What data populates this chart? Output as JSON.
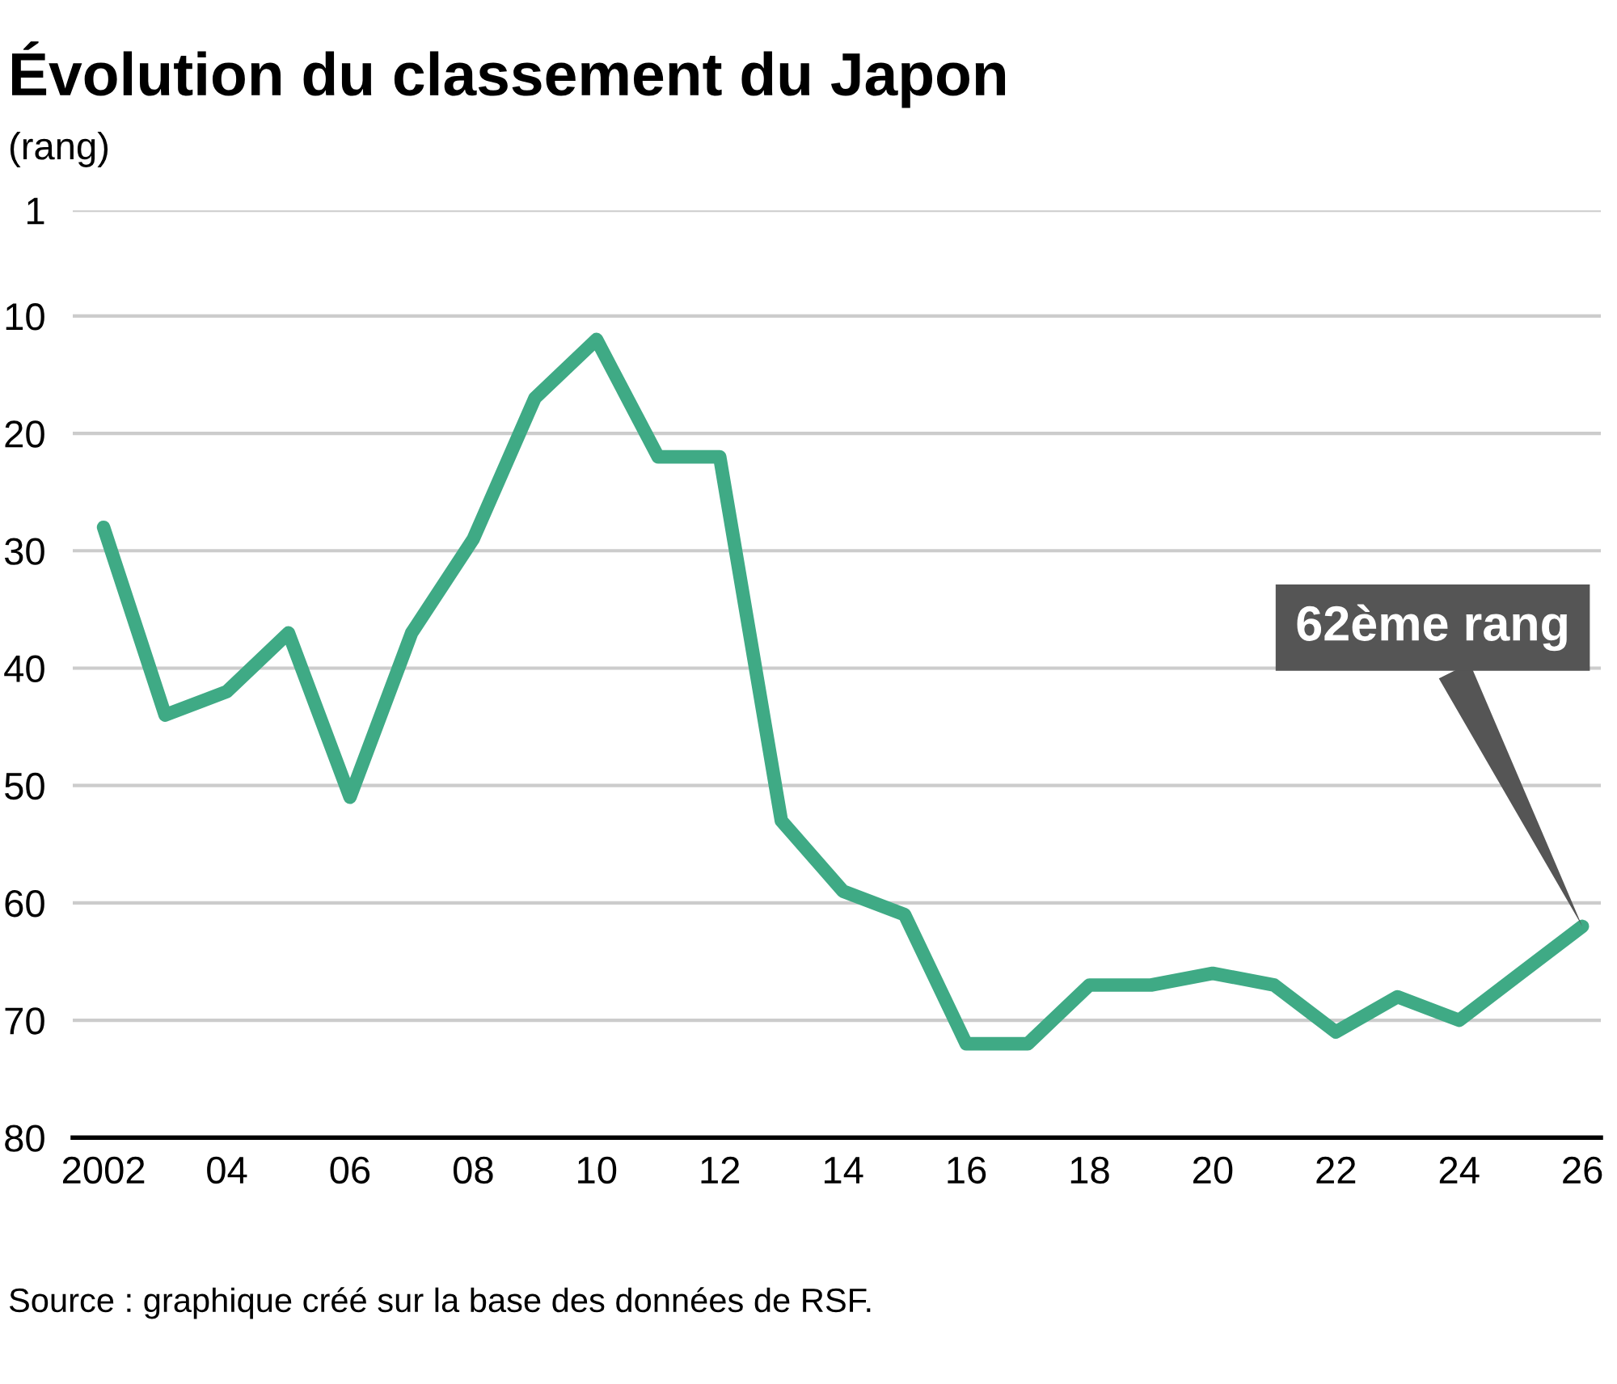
{
  "chart_data": {
    "type": "line",
    "title": "Évolution du classement du Japon",
    "ylabel": "(rang)",
    "x": [
      2002,
      2003,
      2004,
      2005,
      2006,
      2007,
      2008,
      2009,
      2010,
      2011,
      2012,
      2013,
      2014,
      2015,
      2016,
      2017,
      2018,
      2019,
      2020,
      2021,
      2022,
      2023,
      2024,
      2025,
      2026
    ],
    "series": [
      {
        "color": "#3faa85",
        "values": [
          28,
          44,
          42,
          37,
          51,
          37,
          29,
          17,
          12,
          22,
          22,
          53,
          59,
          61,
          72,
          72,
          67,
          67,
          66,
          67,
          71,
          68,
          70,
          66,
          62
        ]
      }
    ],
    "xlim": [
      2001.5,
      2026.3
    ],
    "xticks": [
      {
        "value": 2002,
        "label": "2002"
      },
      {
        "value": 2004,
        "label": "04"
      },
      {
        "value": 2006,
        "label": "06"
      },
      {
        "value": 2008,
        "label": "08"
      },
      {
        "value": 2010,
        "label": "10"
      },
      {
        "value": 2012,
        "label": "12"
      },
      {
        "value": 2014,
        "label": "14"
      },
      {
        "value": 2016,
        "label": "16"
      },
      {
        "value": 2018,
        "label": "18"
      },
      {
        "value": 2020,
        "label": "20"
      },
      {
        "value": 2022,
        "label": "22"
      },
      {
        "value": 2024,
        "label": "24"
      },
      {
        "value": 2026,
        "label": "26"
      }
    ],
    "ylim": [
      80,
      1
    ],
    "yticks": [
      1,
      10,
      20,
      30,
      40,
      50,
      60,
      70,
      80
    ],
    "grid": "y",
    "legend": false,
    "marker": "none",
    "line_style": "solid",
    "annotations": [
      "62ème rang",
      "Source : graphique créé sur la base des données de RSF."
    ]
  }
}
